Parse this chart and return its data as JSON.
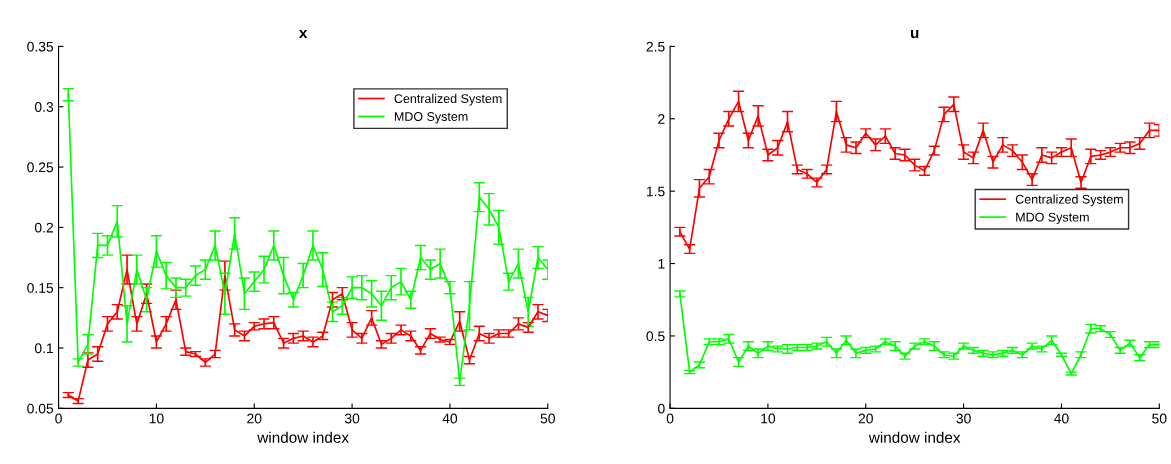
{
  "chart_data": [
    {
      "type": "line",
      "title": "x",
      "xlabel": "window index",
      "x": [
        1,
        2,
        3,
        4,
        5,
        6,
        7,
        8,
        9,
        10,
        11,
        12,
        13,
        14,
        15,
        16,
        17,
        18,
        19,
        20,
        21,
        22,
        23,
        24,
        25,
        26,
        27,
        28,
        29,
        30,
        31,
        32,
        33,
        34,
        35,
        36,
        37,
        38,
        39,
        40,
        41,
        42,
        43,
        44,
        45,
        46,
        47,
        48,
        49,
        50
      ],
      "xlim": [
        0,
        50
      ],
      "xticks": [
        0,
        10,
        20,
        30,
        40,
        50
      ],
      "ylim": [
        0.05,
        0.35
      ],
      "yticks": [
        {
          "value": 0.05,
          "label": "0.05"
        },
        {
          "value": 0.1,
          "label": "0.1"
        },
        {
          "value": 0.15,
          "label": "0.15"
        },
        {
          "value": 0.2,
          "label": "0.2"
        },
        {
          "value": 0.25,
          "label": "0.25"
        },
        {
          "value": 0.3,
          "label": "0.3"
        },
        {
          "value": 0.35,
          "label": "0.35"
        }
      ],
      "legend": "top right",
      "grid": false,
      "marker": "none",
      "line_style": "solid",
      "series": [
        {
          "name": "Centralized System",
          "color": "#ff0000",
          "values": [
            0.061,
            0.056,
            0.09,
            0.095,
            0.12,
            0.13,
            0.165,
            0.12,
            0.145,
            0.105,
            0.12,
            0.14,
            0.097,
            0.095,
            0.088,
            0.095,
            0.16,
            0.115,
            0.11,
            0.118,
            0.12,
            0.121,
            0.104,
            0.108,
            0.11,
            0.105,
            0.11,
            0.14,
            0.145,
            0.115,
            0.108,
            0.125,
            0.103,
            0.108,
            0.115,
            0.11,
            0.098,
            0.112,
            0.107,
            0.105,
            0.122,
            0.09,
            0.112,
            0.108,
            0.112,
            0.112,
            0.12,
            0.117,
            0.13,
            0.127
          ],
          "errors": [
            0.002,
            0.002,
            0.006,
            0.006,
            0.006,
            0.006,
            0.012,
            0.006,
            0.008,
            0.005,
            0.006,
            0.008,
            0.003,
            0.002,
            0.003,
            0.003,
            0.012,
            0.005,
            0.004,
            0.003,
            0.004,
            0.005,
            0.004,
            0.004,
            0.004,
            0.004,
            0.003,
            0.006,
            0.005,
            0.006,
            0.004,
            0.006,
            0.003,
            0.004,
            0.004,
            0.004,
            0.003,
            0.004,
            0.002,
            0.002,
            0.008,
            0.003,
            0.006,
            0.004,
            0.003,
            0.003,
            0.005,
            0.004,
            0.006,
            0.005
          ]
        },
        {
          "name": "MDO System",
          "color": "#00ff00",
          "values": [
            0.31,
            0.088,
            0.103,
            0.185,
            0.185,
            0.205,
            0.12,
            0.165,
            0.14,
            0.18,
            0.16,
            0.15,
            0.15,
            0.16,
            0.165,
            0.185,
            0.145,
            0.195,
            0.145,
            0.155,
            0.165,
            0.185,
            0.16,
            0.14,
            0.16,
            0.185,
            0.165,
            0.13,
            0.135,
            0.15,
            0.15,
            0.145,
            0.135,
            0.15,
            0.155,
            0.14,
            0.175,
            0.165,
            0.17,
            0.15,
            0.072,
            0.135,
            0.225,
            0.215,
            0.2,
            0.155,
            0.17,
            0.13,
            0.175,
            0.165
          ],
          "errors": [
            0.005,
            0.003,
            0.008,
            0.01,
            0.008,
            0.013,
            0.015,
            0.012,
            0.01,
            0.013,
            0.011,
            0.008,
            0.007,
            0.008,
            0.008,
            0.012,
            0.017,
            0.013,
            0.013,
            0.008,
            0.011,
            0.012,
            0.015,
            0.006,
            0.01,
            0.012,
            0.014,
            0.008,
            0.007,
            0.009,
            0.01,
            0.011,
            0.012,
            0.01,
            0.011,
            0.007,
            0.01,
            0.008,
            0.012,
            0.005,
            0.003,
            0.02,
            0.012,
            0.013,
            0.014,
            0.007,
            0.012,
            0.012,
            0.009,
            0.008
          ]
        }
      ]
    },
    {
      "type": "line",
      "title": "u",
      "xlabel": "window index",
      "x": [
        1,
        2,
        3,
        4,
        5,
        6,
        7,
        8,
        9,
        10,
        11,
        12,
        13,
        14,
        15,
        16,
        17,
        18,
        19,
        20,
        21,
        22,
        23,
        24,
        25,
        26,
        27,
        28,
        29,
        30,
        31,
        32,
        33,
        34,
        35,
        36,
        37,
        38,
        39,
        40,
        41,
        42,
        43,
        44,
        45,
        46,
        47,
        48,
        49,
        50
      ],
      "xlim": [
        0,
        50
      ],
      "xticks": [
        0,
        10,
        20,
        30,
        40,
        50
      ],
      "ylim": [
        0,
        2.5
      ],
      "yticks": [
        0,
        0.5,
        1,
        1.5,
        2,
        2.5
      ],
      "legend": "center right",
      "grid": false,
      "marker": "none",
      "line_style": "solid",
      "series": [
        {
          "name": "Centralized System",
          "color": "#ff0000",
          "values": [
            1.22,
            1.1,
            1.52,
            1.6,
            1.85,
            2.0,
            2.12,
            1.85,
            2.02,
            1.75,
            1.8,
            1.98,
            1.65,
            1.62,
            1.56,
            1.65,
            2.05,
            1.82,
            1.8,
            1.9,
            1.82,
            1.88,
            1.76,
            1.75,
            1.68,
            1.64,
            1.78,
            2.03,
            2.1,
            1.77,
            1.73,
            1.92,
            1.7,
            1.82,
            1.78,
            1.7,
            1.58,
            1.75,
            1.73,
            1.77,
            1.8,
            1.56,
            1.74,
            1.75,
            1.77,
            1.8,
            1.8,
            1.83,
            1.92,
            1.92
          ],
          "errors": [
            0.03,
            0.03,
            0.06,
            0.05,
            0.05,
            0.05,
            0.07,
            0.05,
            0.07,
            0.04,
            0.05,
            0.07,
            0.03,
            0.03,
            0.03,
            0.03,
            0.07,
            0.05,
            0.04,
            0.03,
            0.04,
            0.05,
            0.04,
            0.04,
            0.04,
            0.03,
            0.03,
            0.05,
            0.05,
            0.05,
            0.04,
            0.05,
            0.04,
            0.05,
            0.04,
            0.05,
            0.04,
            0.05,
            0.04,
            0.03,
            0.06,
            0.04,
            0.05,
            0.03,
            0.03,
            0.03,
            0.04,
            0.04,
            0.05,
            0.04
          ]
        },
        {
          "name": "MDO System",
          "color": "#00ff00",
          "values": [
            0.79,
            0.25,
            0.3,
            0.46,
            0.46,
            0.48,
            0.32,
            0.43,
            0.38,
            0.43,
            0.41,
            0.41,
            0.42,
            0.42,
            0.43,
            0.46,
            0.38,
            0.47,
            0.38,
            0.4,
            0.41,
            0.46,
            0.43,
            0.36,
            0.43,
            0.46,
            0.43,
            0.37,
            0.36,
            0.43,
            0.4,
            0.38,
            0.37,
            0.38,
            0.4,
            0.37,
            0.43,
            0.41,
            0.47,
            0.37,
            0.24,
            0.37,
            0.55,
            0.55,
            0.51,
            0.4,
            0.45,
            0.35,
            0.44,
            0.44
          ],
          "errors": [
            0.02,
            0.01,
            0.02,
            0.02,
            0.02,
            0.03,
            0.03,
            0.03,
            0.03,
            0.03,
            0.02,
            0.03,
            0.02,
            0.02,
            0.02,
            0.03,
            0.03,
            0.03,
            0.03,
            0.02,
            0.02,
            0.02,
            0.03,
            0.02,
            0.02,
            0.02,
            0.03,
            0.02,
            0.02,
            0.02,
            0.02,
            0.02,
            0.02,
            0.02,
            0.02,
            0.02,
            0.02,
            0.02,
            0.03,
            0.01,
            0.01,
            0.02,
            0.03,
            0.02,
            0.02,
            0.02,
            0.02,
            0.02,
            0.02,
            0.02
          ]
        }
      ]
    }
  ]
}
